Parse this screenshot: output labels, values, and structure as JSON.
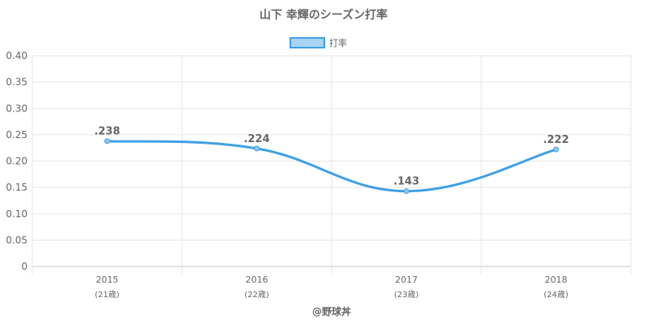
{
  "chart_data": {
    "type": "line",
    "title": "山下 幸輝のシーズン打率",
    "legend": {
      "label": "打率",
      "position": "top-center"
    },
    "categories": [
      "2015",
      "2016",
      "2017",
      "2018"
    ],
    "category_sublabels": [
      "(21歳)",
      "(22歳)",
      "(23歳)",
      "(24歳)"
    ],
    "series": [
      {
        "name": "打率",
        "values": [
          0.238,
          0.224,
          0.143,
          0.222
        ],
        "data_labels": [
          ".238",
          ".224",
          ".143",
          ".222"
        ]
      }
    ],
    "y_ticks": [
      "0",
      "0.05",
      "0.10",
      "0.15",
      "0.20",
      "0.25",
      "0.30",
      "0.35",
      "0.40"
    ],
    "ylim": [
      0,
      0.4
    ],
    "grid": true,
    "credit": "@野球丼",
    "colors": {
      "line": "#3fa0e4",
      "point_fill": "#8fc7f0",
      "legend_fill": "#a8d3f2"
    }
  }
}
